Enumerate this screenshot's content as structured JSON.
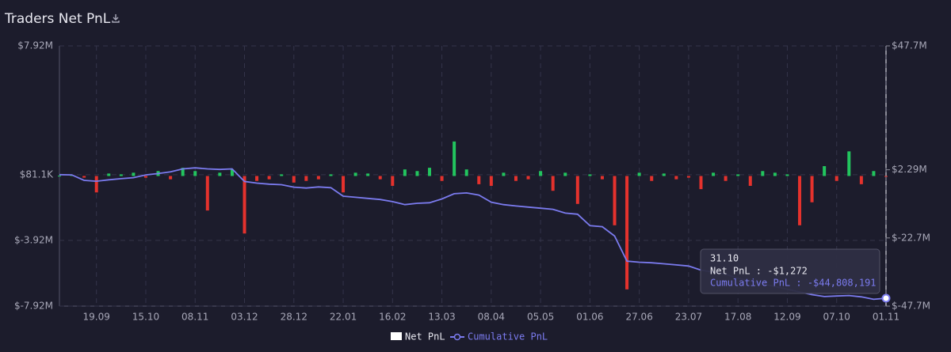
{
  "chart_data": {
    "type": "bar",
    "title": "Traders Net PnL",
    "categories": [
      null,
      null,
      null,
      "19.09",
      null,
      null,
      null,
      "15.10",
      null,
      null,
      null,
      "08.11",
      null,
      null,
      null,
      "03.12",
      null,
      null,
      null,
      "28.12",
      null,
      null,
      null,
      "22.01",
      null,
      null,
      null,
      "16.02",
      null,
      null,
      null,
      "13.03",
      null,
      null,
      null,
      "08.04",
      null,
      null,
      null,
      "05.05",
      null,
      null,
      null,
      "01.06",
      null,
      null,
      null,
      "27.06",
      null,
      null,
      null,
      "23.07",
      null,
      null,
      null,
      "17.08",
      null,
      null,
      null,
      "12.09",
      null,
      null,
      null,
      "07.10",
      null,
      null,
      null,
      "01.11"
    ],
    "series": [
      {
        "name": "Net PnL",
        "type": "bar",
        "color": "#ffffff",
        "positive_color": "#22c55e",
        "negative_color": "#e5322d",
        "values": [
          20000,
          50000,
          -100000,
          -1000000,
          150000,
          100000,
          200000,
          -100000,
          300000,
          -200000,
          500000,
          300000,
          -2100000,
          200000,
          400000,
          -3500000,
          -300000,
          -200000,
          100000,
          -400000,
          -300000,
          -200000,
          100000,
          -1000000,
          200000,
          150000,
          -200000,
          -600000,
          400000,
          300000,
          500000,
          -300000,
          2100000,
          400000,
          -500000,
          -600000,
          200000,
          -300000,
          -200000,
          300000,
          -900000,
          200000,
          -1700000,
          100000,
          -200000,
          -3000000,
          -6900000,
          200000,
          -300000,
          150000,
          -200000,
          -100000,
          -800000,
          200000,
          -300000,
          100000,
          -600000,
          300000,
          200000,
          100000,
          -3000000,
          -1600000,
          600000,
          -300000,
          1500000,
          -500000,
          300000,
          -1272
        ]
      },
      {
        "name": "Cumulative PnL",
        "type": "line",
        "axis": "y2",
        "color": "#7b7bef",
        "values": [
          500000,
          400000,
          -1600000,
          -1900000,
          -1400000,
          -1000000,
          -600000,
          400000,
          900000,
          1500000,
          2600000,
          3000000,
          2600000,
          2400000,
          2600000,
          -2000000,
          -2600000,
          -3000000,
          -3200000,
          -4100000,
          -4400000,
          -4000000,
          -4300000,
          -7400000,
          -7800000,
          -8200000,
          -8600000,
          -9400000,
          -10500000,
          -10000000,
          -9800000,
          -8400000,
          -6500000,
          -6200000,
          -7000000,
          -9600000,
          -10500000,
          -11000000,
          -11400000,
          -11800000,
          -12200000,
          -13600000,
          -14000000,
          -18200000,
          -18600000,
          -22000000,
          -31200000,
          -31600000,
          -31800000,
          -32200000,
          -32600000,
          -33000000,
          -34500000,
          -35200000,
          -36000000,
          -37500000,
          -38500000,
          -39500000,
          -40500000,
          -41500000,
          -42500000,
          -43500000,
          -44200000,
          -44000000,
          -43800000,
          -44300000,
          -45200000,
          -44808191
        ]
      }
    ],
    "ylim": [
      -7920000,
      7920000
    ],
    "yticks": [
      {
        "value": 7920000,
        "label": "$7.92M"
      },
      {
        "value": 81100,
        "label": "$81.1K"
      },
      {
        "value": -3920000,
        "label": "$-3.92M"
      },
      {
        "value": -7920000,
        "label": "$-7.92M"
      }
    ],
    "y2lim": [
      -47700000,
      47700000
    ],
    "y2ticks": [
      {
        "value": 47700000,
        "label": "$47.7M"
      },
      {
        "value": 2290000,
        "label": "$2.29M"
      },
      {
        "value": -22700000,
        "label": "$-22.7M"
      },
      {
        "value": -47700000,
        "label": "$-47.7M"
      }
    ],
    "grid": true,
    "legend": "bottom",
    "tooltip": {
      "title": "31.10",
      "lines": [
        "Net PnL : -$1,272",
        "Cumulative PnL : -$44,808,191"
      ]
    }
  }
}
